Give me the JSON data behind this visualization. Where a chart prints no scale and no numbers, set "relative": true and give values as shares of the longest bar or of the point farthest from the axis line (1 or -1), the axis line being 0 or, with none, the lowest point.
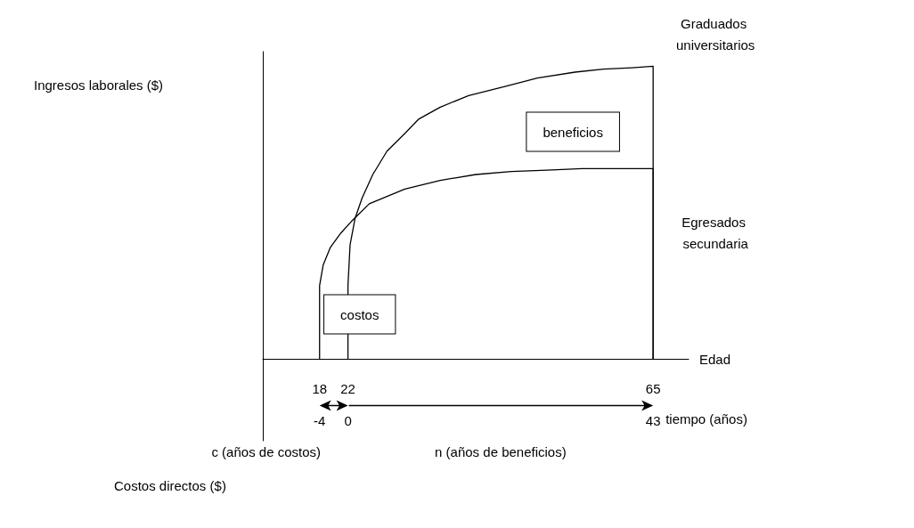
{
  "chart_data": {
    "type": "line",
    "relative": true,
    "xlabel": "Edad",
    "x2label": "tiempo (años)",
    "xlim": [
      10,
      70
    ],
    "xticks": [
      18,
      22,
      65
    ],
    "x2lim": [
      -12,
      48
    ],
    "x2ticks": [
      -4,
      0,
      43
    ],
    "tick_labels": "x",
    "grid": false,
    "legend": false,
    "marker": "none",
    "line_style": "solid",
    "series": [
      {
        "name": "Graduados universitarios",
        "color": "#000000",
        "x": [
          22,
          22,
          22.3,
          23,
          24,
          25.5,
          27.5,
          30,
          32,
          35,
          39,
          44,
          48.7,
          54,
          58,
          62,
          65,
          65
        ],
        "values": [
          0,
          0.25,
          0.39,
          0.48,
          0.55,
          0.63,
          0.71,
          0.77,
          0.82,
          0.86,
          0.9,
          0.93,
          0.96,
          0.98,
          0.99,
          0.995,
          1,
          0
        ]
      },
      {
        "name": "Egresados secundaria",
        "color": "#000000",
        "x": [
          18,
          18,
          18.5,
          19.5,
          21,
          22.5,
          25,
          30,
          35,
          40,
          45,
          50,
          55,
          60,
          65,
          65
        ],
        "values": [
          0,
          0.25,
          0.32,
          0.38,
          0.43,
          0.47,
          0.53,
          0.58,
          0.61,
          0.63,
          0.64,
          0.645,
          0.65,
          0.65,
          0.65,
          0
        ]
      }
    ],
    "annotations": [
      "Ingresos laborales ($)",
      "costos",
      "beneficios",
      "c (años de costos)",
      "n (años de beneficios)",
      "Costos directos ($)"
    ]
  }
}
